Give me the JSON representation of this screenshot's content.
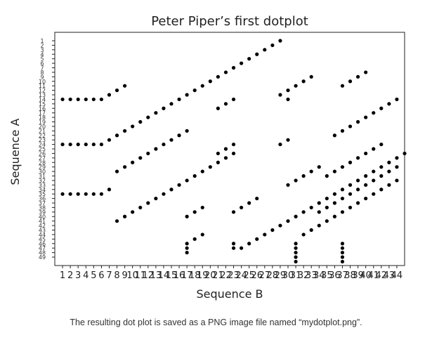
{
  "figure": {
    "caption": "The resulting dot plot is saved as a PNG image file named “mydotplot.png”."
  },
  "chart_data": {
    "type": "scatter",
    "title": "Peter Piper’s first dotplot",
    "xlabel": "Sequence B",
    "ylabel": "Sequence A",
    "xlim": [
      0,
      45
    ],
    "ylim": [
      1,
      49
    ],
    "y_inverted": true,
    "grid": false,
    "legend": "none",
    "marker_color": "#000000",
    "x_tick_labels": [
      "1",
      "2",
      "3",
      "4",
      "5",
      "6",
      "7",
      "8",
      "9",
      "10",
      "11",
      "12",
      "13",
      "14",
      "15",
      "16",
      "17",
      "18",
      "19",
      "20",
      "21",
      "22",
      "23",
      "24",
      "25",
      "26",
      "27",
      "28",
      "29",
      "30",
      "31",
      "32",
      "33",
      "34",
      "35",
      "36",
      "37",
      "38",
      "39",
      "40",
      "41",
      "42",
      "43",
      "44"
    ],
    "y_tick_labels": [
      "1",
      "2",
      "3",
      "4",
      "5",
      "6",
      "7",
      "8",
      "9",
      "10",
      "11",
      "12",
      "13",
      "14",
      "15",
      "16",
      "17",
      "18",
      "19",
      "20",
      "21",
      "22",
      "23",
      "24",
      "25",
      "26",
      "27",
      "28",
      "29",
      "30",
      "31",
      "32",
      "33",
      "34",
      "35",
      "36",
      "37",
      "38",
      "39",
      "40",
      "41",
      "42",
      "43",
      "44",
      "45",
      "46",
      "47",
      "48",
      "49"
    ],
    "point_groups": [
      {
        "kind": "hrun",
        "x0": 1,
        "x1": 6,
        "y": 14
      },
      {
        "kind": "diag",
        "x0": 6,
        "y0": 14,
        "n": 4
      },
      {
        "kind": "hrun",
        "x0": 1,
        "x1": 6,
        "y": 24
      },
      {
        "kind": "diag",
        "x0": 6,
        "y0": 24,
        "n": 24
      },
      {
        "kind": "hrun",
        "x0": 1,
        "x1": 6,
        "y": 35
      },
      {
        "kind": "diag",
        "x0": 6,
        "y0": 35,
        "n": 2
      },
      {
        "kind": "diag",
        "x0": 8,
        "y0": 30,
        "n": 10
      },
      {
        "kind": "diag",
        "x0": 8,
        "y0": 41,
        "n": 16
      },
      {
        "kind": "diag",
        "x0": 16,
        "y0": 33,
        "n": 2
      },
      {
        "kind": "diag",
        "x0": 17,
        "y0": 40,
        "n": 3
      },
      {
        "kind": "diag",
        "x0": 17,
        "y0": 46,
        "n": 3
      },
      {
        "kind": "vrun",
        "x": 17,
        "y0": 46,
        "y1": 48
      },
      {
        "kind": "diag",
        "x0": 21,
        "y0": 16,
        "n": 3
      },
      {
        "kind": "diag",
        "x0": 21,
        "y0": 26,
        "n": 3
      },
      {
        "kind": "vrun",
        "x": 23,
        "y0": 46,
        "y1": 47
      },
      {
        "kind": "diag",
        "x0": 23,
        "y0": 39,
        "n": 4
      },
      {
        "kind": "diag",
        "x0": 24,
        "y0": 47,
        "n": 24
      },
      {
        "kind": "diag",
        "x0": 29,
        "y0": 13,
        "n": 5
      },
      {
        "kind": "diag",
        "x0": 29,
        "y0": 24,
        "n": 2
      },
      {
        "kind": "diag",
        "x0": 30,
        "y0": 14,
        "n": 1
      },
      {
        "kind": "diag",
        "x0": 30,
        "y0": 33,
        "n": 5
      },
      {
        "kind": "vrun",
        "x": 31,
        "y0": 46,
        "y1": 50
      },
      {
        "kind": "diag",
        "x0": 32,
        "y0": 44,
        "n": 13
      },
      {
        "kind": "diag",
        "x0": 34,
        "y0": 39,
        "n": 11
      },
      {
        "kind": "diag",
        "x0": 35,
        "y0": 31,
        "n": 8
      },
      {
        "kind": "diag",
        "x0": 36,
        "y0": 22,
        "n": 9
      },
      {
        "kind": "diag",
        "x0": 37,
        "y0": 11,
        "n": 4
      },
      {
        "kind": "vrun",
        "x": 37,
        "y0": 46,
        "y1": 50
      }
    ]
  }
}
